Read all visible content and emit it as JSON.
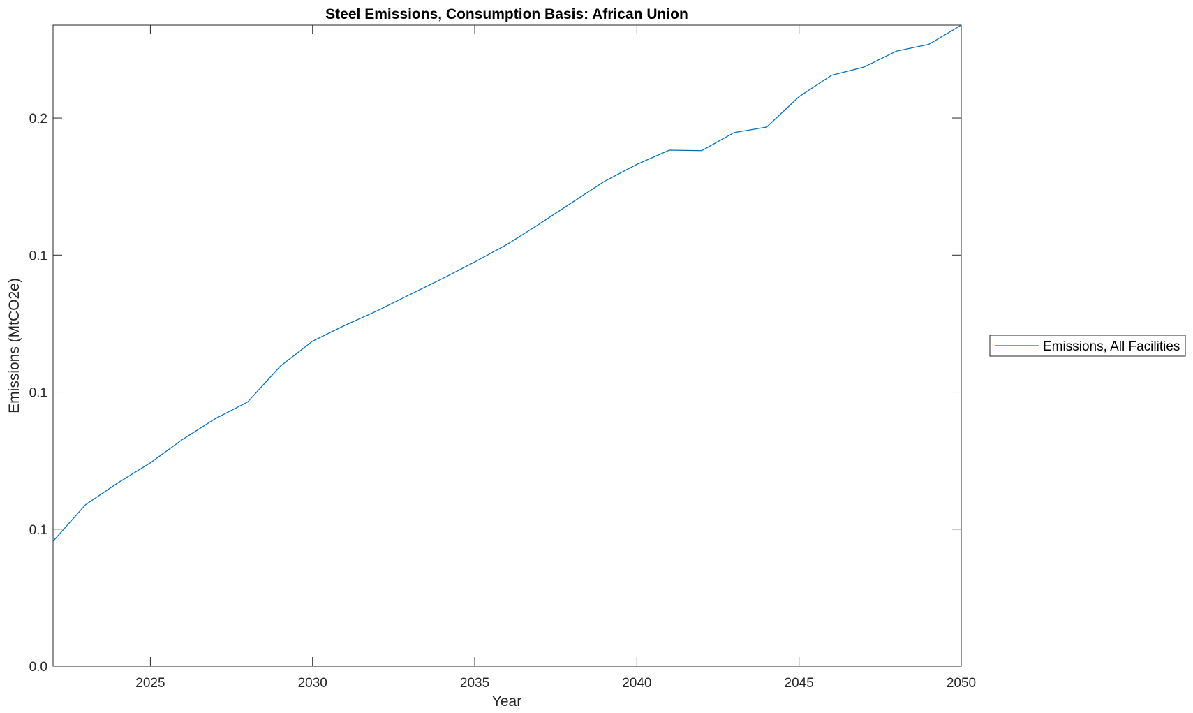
{
  "chart_data": {
    "type": "line",
    "title": "Steel Emissions, Consumption Basis: African Union",
    "xlabel": "Year",
    "ylabel": "Emissions (MtCO2e)",
    "xlim": [
      2022,
      2050
    ],
    "ylim": [
      0,
      0.2339
    ],
    "x_ticks": [
      2025,
      2030,
      2035,
      2040,
      2045,
      2050
    ],
    "x_tick_labels": [
      "2025",
      "2030",
      "2035",
      "2040",
      "2045",
      "2050"
    ],
    "y_ticks": [
      0,
      0.05,
      0.1,
      0.15,
      0.2
    ],
    "y_tick_labels": [
      "0.0",
      "0.1",
      "0.1",
      "0.1",
      "0.2"
    ],
    "grid": false,
    "legend_position": "outside-right",
    "x": [
      2022,
      2023,
      2024,
      2025,
      2026,
      2027,
      2028,
      2029,
      2030,
      2031,
      2032,
      2033,
      2034,
      2035,
      2036,
      2037,
      2038,
      2039,
      2040,
      2041,
      2042,
      2043,
      2044,
      2045,
      2046,
      2047,
      2048,
      2049,
      2050
    ],
    "series": [
      {
        "name": "Emissions, All Facilities",
        "color": "#0072BD",
        "values": [
          0.0456,
          0.0589,
          0.0669,
          0.0742,
          0.0828,
          0.0903,
          0.0964,
          0.1094,
          0.1186,
          0.1244,
          0.1297,
          0.1356,
          0.1414,
          0.1475,
          0.1539,
          0.1614,
          0.1692,
          0.1769,
          0.1831,
          0.1883,
          0.1881,
          0.1947,
          0.1967,
          0.2078,
          0.2156,
          0.2186,
          0.2244,
          0.2269,
          0.2339
        ]
      }
    ]
  }
}
